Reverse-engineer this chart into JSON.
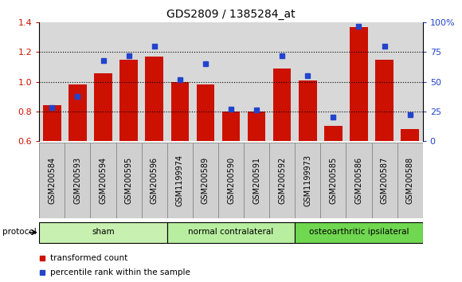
{
  "title": "GDS2809 / 1385284_at",
  "samples": [
    "GSM200584",
    "GSM200593",
    "GSM200594",
    "GSM200595",
    "GSM200596",
    "GSM1199974",
    "GSM200589",
    "GSM200590",
    "GSM200591",
    "GSM200592",
    "GSM1199973",
    "GSM200585",
    "GSM200586",
    "GSM200587",
    "GSM200588"
  ],
  "red_values": [
    0.84,
    0.98,
    1.06,
    1.15,
    1.17,
    1.0,
    0.98,
    0.8,
    0.8,
    1.09,
    1.01,
    0.7,
    1.37,
    1.15,
    0.68
  ],
  "blue_values": [
    28,
    38,
    68,
    72,
    80,
    52,
    65,
    27,
    26,
    72,
    55,
    20,
    97,
    80,
    22
  ],
  "ylim_left": [
    0.6,
    1.4
  ],
  "ylim_right": [
    0,
    100
  ],
  "yticks_left": [
    0.6,
    0.8,
    1.0,
    1.2,
    1.4
  ],
  "yticks_right": [
    0,
    25,
    50,
    75,
    100
  ],
  "ytick_labels_right": [
    "0",
    "25",
    "50",
    "75",
    "100%"
  ],
  "groups": [
    {
      "label": "sham",
      "start": 0,
      "end": 4,
      "color": "#c8f0b0"
    },
    {
      "label": "normal contralateral",
      "start": 5,
      "end": 9,
      "color": "#b8eea0"
    },
    {
      "label": "osteoarthritic ipsilateral",
      "start": 10,
      "end": 14,
      "color": "#70d850"
    }
  ],
  "protocol_label": "protocol",
  "red_color": "#cc1100",
  "blue_color": "#2244cc",
  "bar_bg_color": "#d8d8d8",
  "bg_color": "#ffffff",
  "grid_color": "black",
  "legend_red_label": "transformed count",
  "legend_blue_label": "percentile rank within the sample",
  "title_fontsize": 10,
  "tick_fontsize": 7,
  "label_box_color": "#d0d0d0",
  "label_box_edge": "#888888"
}
